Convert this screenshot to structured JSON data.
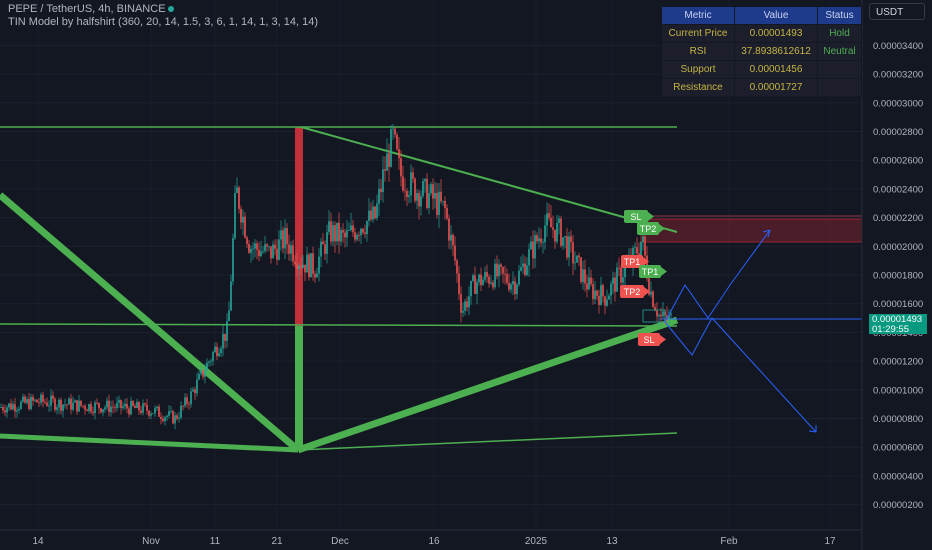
{
  "header": {
    "symbol_line": "PEPE / TetherUS, 4h, BINANCE",
    "indicator_line": "TIN Model by halfshirt (360, 20, 14, 1.5, 3, 6, 1, 14, 1, 3, 14, 14)"
  },
  "currency_label": "USDT",
  "metrics_table": {
    "headers": [
      "Metric",
      "Value",
      "Status"
    ],
    "rows": [
      [
        "Current Price",
        "0.00001493",
        "Hold"
      ],
      [
        "RSI",
        "37.8938612612",
        "Neutral"
      ],
      [
        "Support",
        "0.00001456",
        ""
      ],
      [
        "Resistance",
        "0.00001727",
        ""
      ]
    ]
  },
  "price_axis": {
    "ticks": [
      "0.00003400",
      "0.00003200",
      "0.00003000",
      "0.00002800",
      "0.00002600",
      "0.00002400",
      "0.00002200",
      "0.00002000",
      "0.00001800",
      "0.00001600",
      "0.00001400",
      "0.00001200",
      "0.00001000",
      "0.00000800",
      "0.00000600",
      "0.00000400",
      "0.00000200"
    ],
    "tick_values": [
      34,
      32,
      30,
      28,
      26,
      24,
      22,
      20,
      18,
      16,
      14,
      12,
      10,
      8,
      6,
      4,
      2
    ]
  },
  "time_axis": {
    "labels": [
      "14",
      "Nov",
      "11",
      "21",
      "Dec",
      "16",
      "2025",
      "13",
      "Feb",
      "17"
    ]
  },
  "current_price": {
    "value": "0.00001493",
    "countdown": "01:29:55"
  },
  "signal_labels": {
    "sl_top": "SL",
    "tp2_top": "TP2",
    "tp1_red": "TP1",
    "tp1_green": "TP1",
    "tp2_red": "TP2",
    "sl_bottom": "SL"
  },
  "colors": {
    "background": "#131722",
    "up": "#26a69a",
    "down": "#ef5350",
    "trend_green": "#4caf50",
    "projection_blue": "#2962ff",
    "table_header": "#1e3a8a"
  }
}
